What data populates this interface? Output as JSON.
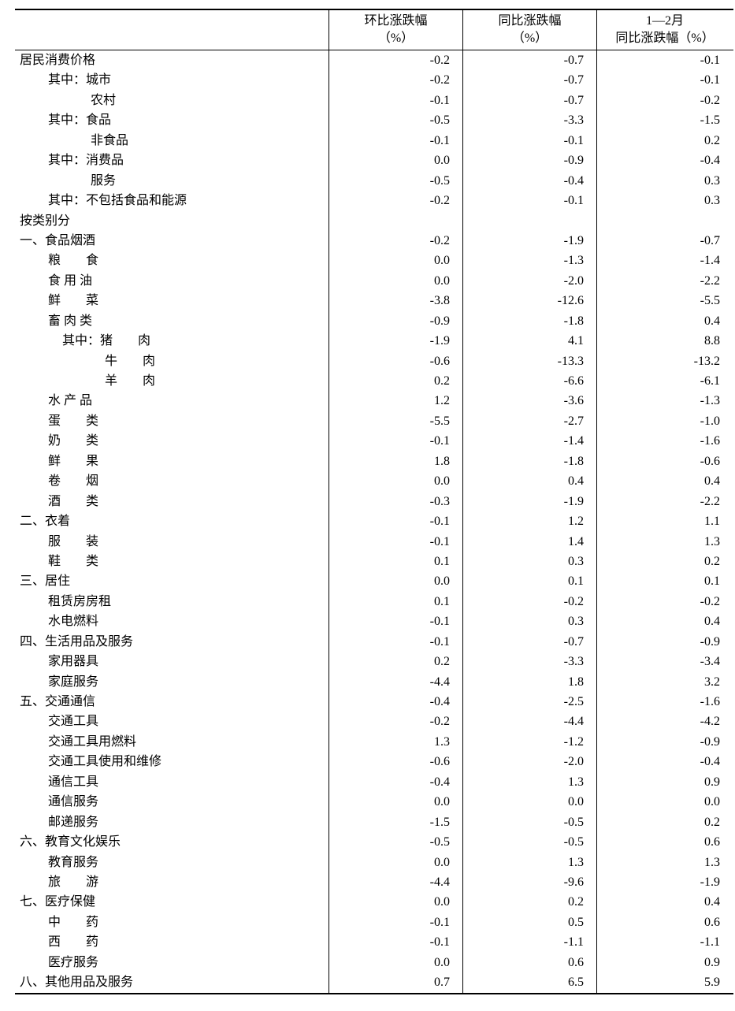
{
  "header": {
    "col1": [
      "环比涨跌幅",
      "（%）"
    ],
    "col2": [
      "同比涨跌幅",
      "（%）"
    ],
    "col3": [
      "1—2月",
      "同比涨跌幅（%）"
    ]
  },
  "rows": [
    {
      "label": "居民消费价格",
      "level": 0,
      "mom": "-0.2",
      "yoy": "-0.7",
      "ytd": "-0.1"
    },
    {
      "label": "其中：城市",
      "level": 1,
      "mom": "-0.2",
      "yoy": "-0.7",
      "ytd": "-0.1"
    },
    {
      "label": "农村",
      "level": 2,
      "mom": "-0.1",
      "yoy": "-0.7",
      "ytd": "-0.2"
    },
    {
      "label": "其中：食品",
      "level": 1,
      "mom": "-0.5",
      "yoy": "-3.3",
      "ytd": "-1.5"
    },
    {
      "label": "非食品",
      "level": 2,
      "mom": "-0.1",
      "yoy": "-0.1",
      "ytd": "0.2"
    },
    {
      "label": "其中：消费品",
      "level": 1,
      "mom": "0.0",
      "yoy": "-0.9",
      "ytd": "-0.4"
    },
    {
      "label": "服务",
      "level": 2,
      "mom": "-0.5",
      "yoy": "-0.4",
      "ytd": "0.3"
    },
    {
      "label": "其中：不包括食品和能源",
      "level": 1,
      "mom": "-0.2",
      "yoy": "-0.1",
      "ytd": "0.3"
    },
    {
      "label": "按类别分",
      "level": 0,
      "mom": "",
      "yoy": "",
      "ytd": ""
    },
    {
      "label": "一、食品烟酒",
      "level": 0,
      "mom": "-0.2",
      "yoy": "-1.9",
      "ytd": "-0.7"
    },
    {
      "label": "粮　　食",
      "level": 1,
      "mom": "0.0",
      "yoy": "-1.3",
      "ytd": "-1.4"
    },
    {
      "label": "食 用 油",
      "level": 1,
      "mom": "0.0",
      "yoy": "-2.0",
      "ytd": "-2.2"
    },
    {
      "label": "鲜　　菜",
      "level": 1,
      "mom": "-3.8",
      "yoy": "-12.6",
      "ytd": "-5.5"
    },
    {
      "label": "畜 肉 类",
      "level": 1,
      "mom": "-0.9",
      "yoy": "-1.8",
      "ytd": "0.4"
    },
    {
      "label": "其中：猪　　肉",
      "level": 3,
      "mom": "-1.9",
      "yoy": "4.1",
      "ytd": "8.8"
    },
    {
      "label": "牛　　肉",
      "level": 4,
      "mom": "-0.6",
      "yoy": "-13.3",
      "ytd": "-13.2"
    },
    {
      "label": "羊　　肉",
      "level": 4,
      "mom": "0.2",
      "yoy": "-6.6",
      "ytd": "-6.1"
    },
    {
      "label": "水 产 品",
      "level": 1,
      "mom": "1.2",
      "yoy": "-3.6",
      "ytd": "-1.3"
    },
    {
      "label": "蛋　　类",
      "level": 1,
      "mom": "-5.5",
      "yoy": "-2.7",
      "ytd": "-1.0"
    },
    {
      "label": "奶　　类",
      "level": 1,
      "mom": "-0.1",
      "yoy": "-1.4",
      "ytd": "-1.6"
    },
    {
      "label": "鲜　　果",
      "level": 1,
      "mom": "1.8",
      "yoy": "-1.8",
      "ytd": "-0.6"
    },
    {
      "label": "卷　　烟",
      "level": 1,
      "mom": "0.0",
      "yoy": "0.4",
      "ytd": "0.4"
    },
    {
      "label": "酒　　类",
      "level": 1,
      "mom": "-0.3",
      "yoy": "-1.9",
      "ytd": "-2.2"
    },
    {
      "label": "二、衣着",
      "level": 0,
      "mom": "-0.1",
      "yoy": "1.2",
      "ytd": "1.1"
    },
    {
      "label": "服　　装",
      "level": 1,
      "mom": "-0.1",
      "yoy": "1.4",
      "ytd": "1.3"
    },
    {
      "label": "鞋　　类",
      "level": 1,
      "mom": "0.1",
      "yoy": "0.3",
      "ytd": "0.2"
    },
    {
      "label": "三、居住",
      "level": 0,
      "mom": "0.0",
      "yoy": "0.1",
      "ytd": "0.1"
    },
    {
      "label": "租赁房房租",
      "level": 1,
      "mom": "0.1",
      "yoy": "-0.2",
      "ytd": "-0.2"
    },
    {
      "label": "水电燃料",
      "level": 1,
      "mom": "-0.1",
      "yoy": "0.3",
      "ytd": "0.4"
    },
    {
      "label": "四、生活用品及服务",
      "level": 0,
      "mom": "-0.1",
      "yoy": "-0.7",
      "ytd": "-0.9"
    },
    {
      "label": "家用器具",
      "level": 1,
      "mom": "0.2",
      "yoy": "-3.3",
      "ytd": "-3.4"
    },
    {
      "label": "家庭服务",
      "level": 1,
      "mom": "-4.4",
      "yoy": "1.8",
      "ytd": "3.2"
    },
    {
      "label": "五、交通通信",
      "level": 0,
      "mom": "-0.4",
      "yoy": "-2.5",
      "ytd": "-1.6"
    },
    {
      "label": "交通工具",
      "level": 1,
      "mom": "-0.2",
      "yoy": "-4.4",
      "ytd": "-4.2"
    },
    {
      "label": "交通工具用燃料",
      "level": 1,
      "mom": "1.3",
      "yoy": "-1.2",
      "ytd": "-0.9"
    },
    {
      "label": "交通工具使用和维修",
      "level": 1,
      "mom": "-0.6",
      "yoy": "-2.0",
      "ytd": "-0.4"
    },
    {
      "label": "通信工具",
      "level": 1,
      "mom": "-0.4",
      "yoy": "1.3",
      "ytd": "0.9"
    },
    {
      "label": "通信服务",
      "level": 1,
      "mom": "0.0",
      "yoy": "0.0",
      "ytd": "0.0"
    },
    {
      "label": "邮递服务",
      "level": 1,
      "mom": "-1.5",
      "yoy": "-0.5",
      "ytd": "0.2"
    },
    {
      "label": "六、教育文化娱乐",
      "level": 0,
      "mom": "-0.5",
      "yoy": "-0.5",
      "ytd": "0.6"
    },
    {
      "label": "教育服务",
      "level": 1,
      "mom": "0.0",
      "yoy": "1.3",
      "ytd": "1.3"
    },
    {
      "label": "旅　　游",
      "level": 1,
      "mom": "-4.4",
      "yoy": "-9.6",
      "ytd": "-1.9"
    },
    {
      "label": "七、医疗保健",
      "level": 0,
      "mom": "0.0",
      "yoy": "0.2",
      "ytd": "0.4"
    },
    {
      "label": "中　　药",
      "level": 1,
      "mom": "-0.1",
      "yoy": "0.5",
      "ytd": "0.6"
    },
    {
      "label": "西　　药",
      "level": 1,
      "mom": "-0.1",
      "yoy": "-1.1",
      "ytd": "-1.1"
    },
    {
      "label": "医疗服务",
      "level": 1,
      "mom": "0.0",
      "yoy": "0.6",
      "ytd": "0.9"
    },
    {
      "label": "八、其他用品及服务",
      "level": 0,
      "mom": "0.7",
      "yoy": "6.5",
      "ytd": "5.9"
    }
  ]
}
